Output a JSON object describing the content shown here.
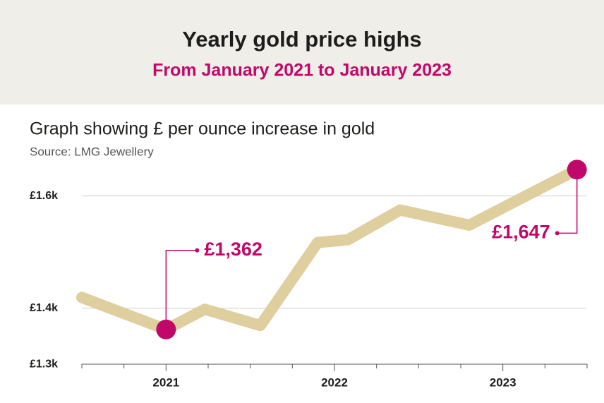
{
  "chart_data": {
    "type": "line",
    "title": "Yearly gold price highs",
    "subtitle": "From January 2021 to January 2023",
    "description": "Graph showing £ per ounce increase in gold",
    "source": "Source: LMG Jewellery",
    "x": [
      2020.5,
      2021,
      2021.23,
      2021.56,
      2021.9,
      2022.08,
      2022.39,
      2022.8,
      2023.44
    ],
    "series": [
      {
        "color": "#dfcf9e",
        "values": [
          1419,
          1362,
          1398,
          1369,
          1517,
          1522,
          1575,
          1548,
          1647
        ],
        "value_labels": [
          null,
          "£1,362",
          null,
          null,
          null,
          null,
          null,
          null,
          "£1,647"
        ]
      }
    ],
    "highlight_color": "#c0086a",
    "xlim": [
      2020.5,
      2023.5
    ],
    "xticks": [
      2021,
      2022,
      2023
    ],
    "xminorticks": [
      2020.5,
      2020.75,
      2021.25,
      2021.5,
      2021.75,
      2022.25,
      2022.5,
      2022.75,
      2023.25,
      2023.5
    ],
    "ylim": [
      1290,
      1660
    ],
    "yticks": [
      {
        "value": 1300,
        "label": "£1.3k"
      },
      {
        "value": 1400,
        "label": "£1.4k"
      },
      {
        "value": 1600,
        "label": "£1.6k"
      }
    ],
    "grid": true
  }
}
